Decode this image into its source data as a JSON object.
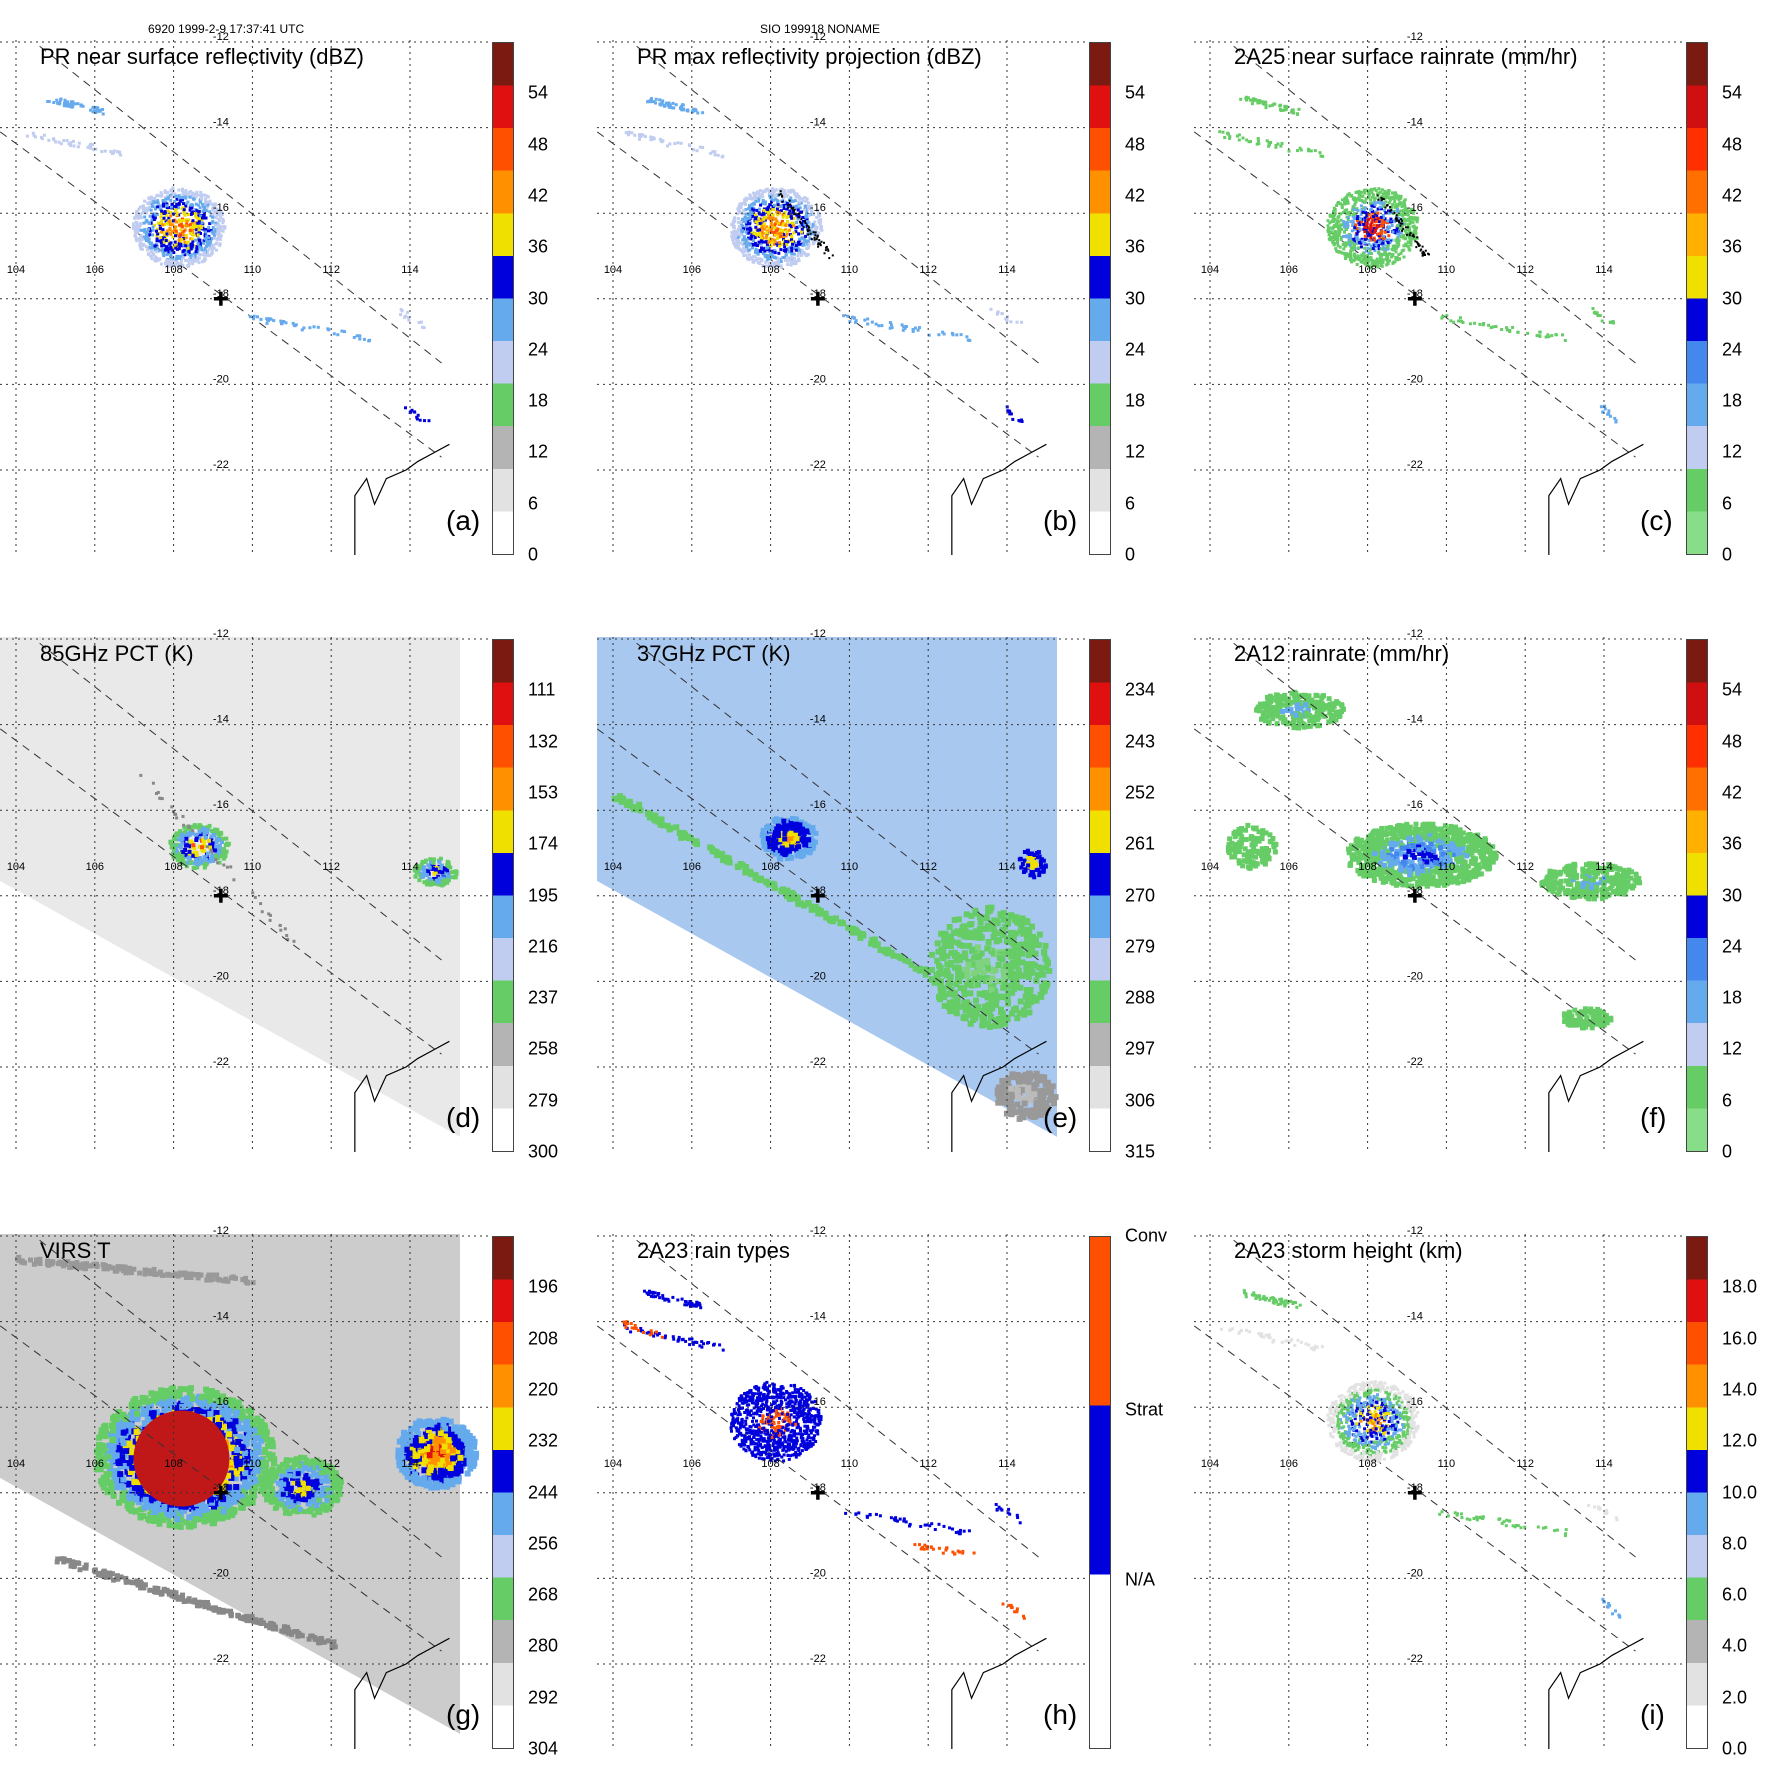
{
  "header": {
    "left_text": "6920 1999-2-9 17:37:41 UTC",
    "right_text": "SIO 199918 NONAME"
  },
  "map": {
    "lon_labels": [
      "104",
      "106",
      "108",
      "110",
      "112",
      "114"
    ],
    "lat_labels": [
      "-12",
      "-14",
      "-16",
      "-18",
      "-20",
      "-22"
    ]
  },
  "chart_data": [
    {
      "type": "heatmap",
      "panel": "a",
      "title": "PR near surface reflectivity (dBZ)",
      "letter": "(a)",
      "colorbar": {
        "ticks": [
          "0",
          "6",
          "12",
          "18",
          "24",
          "30",
          "36",
          "42",
          "48",
          "54"
        ],
        "colors": [
          "#ffffff",
          "#e2e2e2",
          "#b4b4b4",
          "#66cc66",
          "#c0ccf0",
          "#66aaee",
          "#0000dd",
          "#f0e000",
          "#ff9000",
          "#ff5000",
          "#e01010",
          "#7a1a10"
        ]
      },
      "xlim": [
        104,
        114
      ],
      "ylim": [
        -22,
        -12
      ]
    },
    {
      "type": "heatmap",
      "panel": "b",
      "title": "PR max reflectivity projection (dBZ)",
      "letter": "(b)",
      "colorbar": {
        "ticks": [
          "0",
          "6",
          "12",
          "18",
          "24",
          "30",
          "36",
          "42",
          "48",
          "54"
        ],
        "colors": [
          "#ffffff",
          "#e2e2e2",
          "#b4b4b4",
          "#66cc66",
          "#c0ccf0",
          "#66aaee",
          "#0000dd",
          "#f0e000",
          "#ff9000",
          "#ff5000",
          "#e01010",
          "#7a1a10"
        ]
      },
      "xlim": [
        104,
        114
      ],
      "ylim": [
        -22,
        -12
      ]
    },
    {
      "type": "heatmap",
      "panel": "c",
      "title": "2A25 near surface rainrate (mm/hr)",
      "letter": "(c)",
      "colorbar": {
        "ticks": [
          "0",
          "6",
          "12",
          "18",
          "24",
          "30",
          "36",
          "42",
          "48",
          "54"
        ],
        "colors": [
          "#88dd88",
          "#66cc66",
          "#c0ccf0",
          "#66aaee",
          "#4488ee",
          "#0000dd",
          "#f0e000",
          "#ffb000",
          "#ff7000",
          "#ff3000",
          "#d01010",
          "#7a1a10"
        ]
      },
      "xlim": [
        104,
        114
      ],
      "ylim": [
        -22,
        -12
      ]
    },
    {
      "type": "heatmap",
      "panel": "d",
      "title": "85GHz PCT (K)",
      "letter": "(d)",
      "colorbar": {
        "ticks": [
          "300",
          "279",
          "258",
          "237",
          "216",
          "195",
          "174",
          "153",
          "132",
          "111"
        ],
        "colors": [
          "#ffffff",
          "#e2e2e2",
          "#b4b4b4",
          "#66cc66",
          "#c0ccf0",
          "#66aaee",
          "#0000dd",
          "#f0e000",
          "#ff9000",
          "#ff5000",
          "#e01010",
          "#7a1a10"
        ]
      },
      "xlim": [
        104,
        114
      ],
      "ylim": [
        -22,
        -12
      ]
    },
    {
      "type": "heatmap",
      "panel": "e",
      "title": "37GHz PCT (K)",
      "letter": "(e)",
      "colorbar": {
        "ticks": [
          "315",
          "306",
          "297",
          "288",
          "279",
          "270",
          "261",
          "252",
          "243",
          "234"
        ],
        "colors": [
          "#ffffff",
          "#e2e2e2",
          "#b4b4b4",
          "#66cc66",
          "#c0ccf0",
          "#66aaee",
          "#0000dd",
          "#f0e000",
          "#ff9000",
          "#ff5000",
          "#e01010",
          "#7a1a10"
        ]
      },
      "xlim": [
        104,
        114
      ],
      "ylim": [
        -22,
        -12
      ]
    },
    {
      "type": "heatmap",
      "panel": "f",
      "title": "2A12 rainrate (mm/hr)",
      "letter": "(f)",
      "colorbar": {
        "ticks": [
          "0",
          "6",
          "12",
          "18",
          "24",
          "30",
          "36",
          "42",
          "48",
          "54"
        ],
        "colors": [
          "#88dd88",
          "#66cc66",
          "#c0ccf0",
          "#66aaee",
          "#4488ee",
          "#0000dd",
          "#f0e000",
          "#ffb000",
          "#ff7000",
          "#ff3000",
          "#d01010",
          "#7a1a10"
        ]
      },
      "xlim": [
        104,
        114
      ],
      "ylim": [
        -22,
        -12
      ]
    },
    {
      "type": "heatmap",
      "panel": "g",
      "title": "VIRS T",
      "letter": "(g)",
      "colorbar": {
        "ticks": [
          "304",
          "292",
          "280",
          "268",
          "256",
          "244",
          "232",
          "220",
          "208",
          "196"
        ],
        "colors": [
          "#ffffff",
          "#e2e2e2",
          "#b4b4b4",
          "#66cc66",
          "#c0ccf0",
          "#66aaee",
          "#0000dd",
          "#f0e000",
          "#ff9000",
          "#ff5000",
          "#e01010",
          "#7a1a10"
        ]
      },
      "xlim": [
        104,
        114
      ],
      "ylim": [
        -22,
        -12
      ]
    },
    {
      "type": "heatmap",
      "panel": "h",
      "title": "2A23 rain types",
      "letter": "(h)",
      "colorbar": {
        "ticks": [
          "N/A",
          "Strat",
          "Conv"
        ],
        "colors": [
          "#ffffff",
          "#0000dd",
          "#ff5000"
        ]
      },
      "xlim": [
        104,
        114
      ],
      "ylim": [
        -22,
        -12
      ]
    },
    {
      "type": "heatmap",
      "panel": "i",
      "title": "2A23 storm height (km)",
      "letter": "(i)",
      "colorbar": {
        "ticks": [
          "0.0",
          "2.0",
          "4.0",
          "6.0",
          "8.0",
          "10.0",
          "12.0",
          "14.0",
          "16.0",
          "18.0"
        ],
        "colors": [
          "#ffffff",
          "#e2e2e2",
          "#b4b4b4",
          "#66cc66",
          "#c0ccf0",
          "#66aaee",
          "#0000dd",
          "#f0e000",
          "#ff9000",
          "#ff5000",
          "#e01010",
          "#7a1a10"
        ]
      },
      "xlim": [
        104,
        114
      ],
      "ylim": [
        -22,
        -12
      ]
    }
  ]
}
